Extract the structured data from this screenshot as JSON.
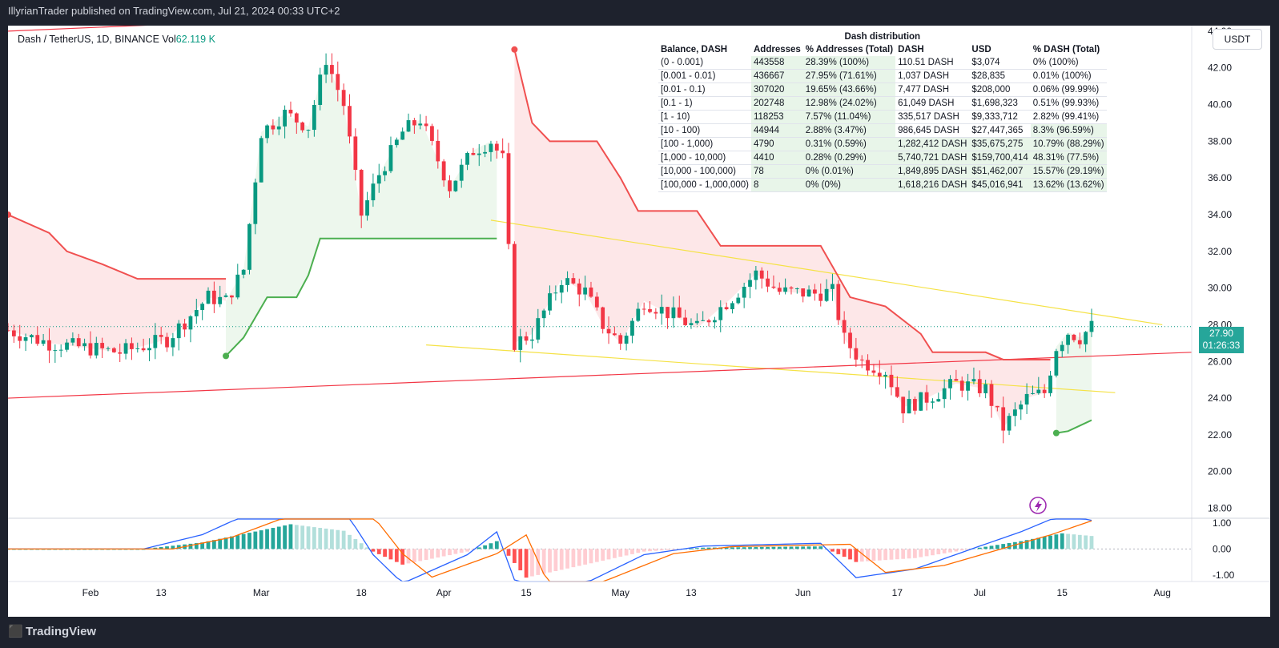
{
  "header": {
    "published_text": "IllyrianTrader published on TradingView.com, Jul 21, 2024 00:33 UTC+2"
  },
  "symbol": {
    "name": "Dash / TetherUS, 1D, BINANCE",
    "vol_label": "Vol",
    "vol_value": "62.119 K"
  },
  "unit_button": {
    "label": "USDT"
  },
  "last_price": {
    "price": "27.90",
    "countdown": "01:26:33"
  },
  "footer": {
    "brand": "TradingView",
    "logo_icon": "tradingview-logo-icon"
  },
  "distribution": {
    "title": "Dash distribution",
    "headers": [
      "Balance, DASH",
      "Addresses",
      "% Addresses (Total)",
      "DASH",
      "USD",
      "% DASH (Total)"
    ],
    "rows": [
      [
        "(0 - 0.001)",
        "443558",
        "28.39% (100%)",
        "110.51 DASH",
        "$3,074",
        "0% (100%)"
      ],
      [
        "[0.001 - 0.01)",
        "436667",
        "27.95% (71.61%)",
        "1,037 DASH",
        "$28,835",
        "0.01% (100%)"
      ],
      [
        "[0.01 - 0.1)",
        "307020",
        "19.65% (43.66%)",
        "7,477 DASH",
        "$208,000",
        "0.06% (99.99%)"
      ],
      [
        "[0.1 - 1)",
        "202748",
        "12.98% (24.02%)",
        "61,049 DASH",
        "$1,698,323",
        "0.51% (99.93%)"
      ],
      [
        "[1 - 10)",
        "118253",
        "7.57% (11.04%)",
        "335,517 DASH",
        "$9,333,712",
        "2.82% (99.41%)"
      ],
      [
        "[10 - 100)",
        "44944",
        "2.88% (3.47%)",
        "986,645 DASH",
        "$27,447,365",
        "8.3% (96.59%)"
      ],
      [
        "[100 - 1,000)",
        "4790",
        "0.31% (0.59%)",
        "1,282,412 DASH",
        "$35,675,275",
        "10.79% (88.29%)"
      ],
      [
        "[1,000 - 10,000)",
        "4410",
        "0.28% (0.29%)",
        "5,740,721 DASH",
        "$159,700,414",
        "48.31% (77.5%)"
      ],
      [
        "[10,000 - 100,000)",
        "78",
        "0% (0.01%)",
        "1,849,895 DASH",
        "$51,462,007",
        "15.57% (29.19%)"
      ],
      [
        "[100,000 - 1,000,000)",
        "8",
        "0% (0%)",
        "1,618,216 DASH",
        "$45,016,941",
        "13.62% (13.62%)"
      ]
    ]
  },
  "colors": {
    "up": "#089981",
    "down": "#f23645",
    "supertrend_up": "#4caf50",
    "supertrend_down": "#f05050",
    "trendline": "#f5e246",
    "channel": "#f23645",
    "macd": "#2962ff",
    "signal": "#ff6d00"
  },
  "chart_data": {
    "type": "candlestick",
    "y_ticks": [
      "44.00",
      "42.00",
      "40.00",
      "38.00",
      "36.00",
      "34.00",
      "32.00",
      "30.00",
      "28.00",
      "26.00",
      "24.00",
      "22.00",
      "20.00",
      "18.00"
    ],
    "ylim": [
      17.5,
      44.3
    ],
    "x_tick_labels": [
      "Feb",
      "13",
      "Mar",
      "18",
      "Apr",
      "15",
      "May",
      "13",
      "Jun",
      "17",
      "Jul",
      "15",
      "Aug"
    ],
    "x_tick_dates": [
      "2024-02-01",
      "2024-02-13",
      "2024-03-01",
      "2024-03-18",
      "2024-04-01",
      "2024-04-15",
      "2024-05-01",
      "2024-05-13",
      "2024-06-01",
      "2024-06-17",
      "2024-07-01",
      "2024-07-15",
      "2024-08-01"
    ],
    "xlim": [
      "2024-01-18",
      "2024-08-06"
    ],
    "keypoints": [
      [
        "2024-01-18",
        27.7
      ],
      [
        "2024-01-25",
        27.0
      ],
      [
        "2024-02-06",
        26.5
      ],
      [
        "2024-02-14",
        27.2
      ],
      [
        "2024-02-21",
        29.5
      ],
      [
        "2024-02-24",
        29.3
      ],
      [
        "2024-02-27",
        31.0
      ],
      [
        "2024-03-01",
        38.5
      ],
      [
        "2024-03-05",
        39.5
      ],
      [
        "2024-03-09",
        38.8
      ],
      [
        "2024-03-12",
        42.5
      ],
      [
        "2024-03-15",
        40.0
      ],
      [
        "2024-03-18",
        34.0
      ],
      [
        "2024-03-21",
        36.2
      ],
      [
        "2024-03-25",
        38.5
      ],
      [
        "2024-03-28",
        39.2
      ],
      [
        "2024-04-02",
        35.5
      ],
      [
        "2024-04-06",
        37.5
      ],
      [
        "2024-04-09",
        38.0
      ],
      [
        "2024-04-11",
        37.0
      ],
      [
        "2024-04-13",
        27.0
      ],
      [
        "2024-04-16",
        27.5
      ],
      [
        "2024-04-21",
        30.5
      ],
      [
        "2024-04-25",
        29.8
      ],
      [
        "2024-04-28",
        28.0
      ],
      [
        "2024-05-01",
        27.0
      ],
      [
        "2024-05-05",
        29.3
      ],
      [
        "2024-05-10",
        28.5
      ],
      [
        "2024-05-14",
        27.8
      ],
      [
        "2024-05-20",
        29.5
      ],
      [
        "2024-05-24",
        30.8
      ],
      [
        "2024-05-28",
        29.8
      ],
      [
        "2024-06-03",
        29.7
      ],
      [
        "2024-06-06",
        29.8
      ],
      [
        "2024-06-08",
        27.2
      ],
      [
        "2024-06-11",
        26.0
      ],
      [
        "2024-06-15",
        25.5
      ],
      [
        "2024-06-18",
        23.5
      ],
      [
        "2024-06-22",
        24.0
      ],
      [
        "2024-06-27",
        24.8
      ],
      [
        "2024-07-02",
        24.5
      ],
      [
        "2024-07-05",
        22.4
      ],
      [
        "2024-07-09",
        24.0
      ],
      [
        "2024-07-12",
        24.3
      ],
      [
        "2024-07-14",
        26.8
      ],
      [
        "2024-07-16",
        27.6
      ],
      [
        "2024-07-18",
        27.3
      ],
      [
        "2024-07-20",
        27.9
      ]
    ],
    "supertrend": [
      {
        "trend": "down",
        "points": [
          [
            "2024-01-18",
            34.0
          ],
          [
            "2024-01-25",
            33.0
          ],
          [
            "2024-01-28",
            32.0
          ],
          [
            "2024-02-03",
            31.3
          ],
          [
            "2024-02-09",
            30.5
          ],
          [
            "2024-02-24",
            30.5
          ]
        ]
      },
      {
        "trend": "up",
        "points": [
          [
            "2024-02-24",
            26.3
          ],
          [
            "2024-02-27",
            27.3
          ],
          [
            "2024-03-02",
            29.5
          ],
          [
            "2024-03-07",
            29.5
          ],
          [
            "2024-03-09",
            30.7
          ],
          [
            "2024-03-11",
            32.7
          ],
          [
            "2024-04-10",
            32.7
          ]
        ]
      },
      {
        "trend": "down",
        "points": [
          [
            "2024-04-13",
            43.0
          ],
          [
            "2024-04-16",
            39.0
          ],
          [
            "2024-04-19",
            38.0
          ],
          [
            "2024-04-27",
            38.0
          ],
          [
            "2024-05-01",
            36.0
          ],
          [
            "2024-05-04",
            34.2
          ],
          [
            "2024-05-14",
            34.2
          ],
          [
            "2024-05-18",
            32.3
          ],
          [
            "2024-06-04",
            32.3
          ],
          [
            "2024-06-09",
            29.5
          ],
          [
            "2024-06-15",
            29.0
          ],
          [
            "2024-06-21",
            27.5
          ],
          [
            "2024-06-23",
            26.5
          ],
          [
            "2024-07-02",
            26.5
          ],
          [
            "2024-07-05",
            26.1
          ],
          [
            "2024-07-13",
            26.1
          ]
        ]
      },
      {
        "trend": "up",
        "points": [
          [
            "2024-07-14",
            22.1
          ],
          [
            "2024-07-16",
            22.2
          ],
          [
            "2024-07-18",
            22.5
          ],
          [
            "2024-07-20",
            22.8
          ]
        ]
      }
    ],
    "trendlines": [
      {
        "color": "yellow",
        "from": [
          "2024-04-09",
          33.7
        ],
        "to": [
          "2024-08-01",
          28.0
        ]
      },
      {
        "color": "yellow",
        "from": [
          "2024-03-29",
          26.9
        ],
        "to": [
          "2024-07-24",
          24.3
        ]
      },
      {
        "color": "red",
        "from": [
          "2024-01-18",
          44.0
        ],
        "to": [
          "2024-05-06",
          45.5
        ]
      },
      {
        "color": "red",
        "from": [
          "2024-01-18",
          24.0
        ],
        "to": [
          "2024-08-06",
          26.5
        ]
      }
    ],
    "macd": {
      "ylim": [
        -1.25,
        1.15
      ],
      "ticks": [
        "1.00",
        "0.00",
        "-1.00"
      ],
      "keypoints": [
        [
          "2024-01-18",
          0.0
        ],
        [
          "2024-02-10",
          0.0
        ],
        [
          "2024-02-20",
          0.25
        ],
        [
          "2024-03-06",
          0.95
        ],
        [
          "2024-03-15",
          0.7
        ],
        [
          "2024-03-20",
          -0.1
        ],
        [
          "2024-03-25",
          -0.6
        ],
        [
          "2024-04-05",
          -0.1
        ],
        [
          "2024-04-10",
          0.3
        ],
        [
          "2024-04-15",
          -1.1
        ],
        [
          "2024-04-25",
          -0.6
        ],
        [
          "2024-05-05",
          -0.1
        ],
        [
          "2024-05-15",
          0.05
        ],
        [
          "2024-06-04",
          0.1
        ],
        [
          "2024-06-10",
          -0.5
        ],
        [
          "2024-06-20",
          -0.35
        ],
        [
          "2024-07-01",
          0.05
        ],
        [
          "2024-07-08",
          0.3
        ],
        [
          "2024-07-15",
          0.6
        ],
        [
          "2024-07-20",
          0.5
        ]
      ]
    }
  }
}
